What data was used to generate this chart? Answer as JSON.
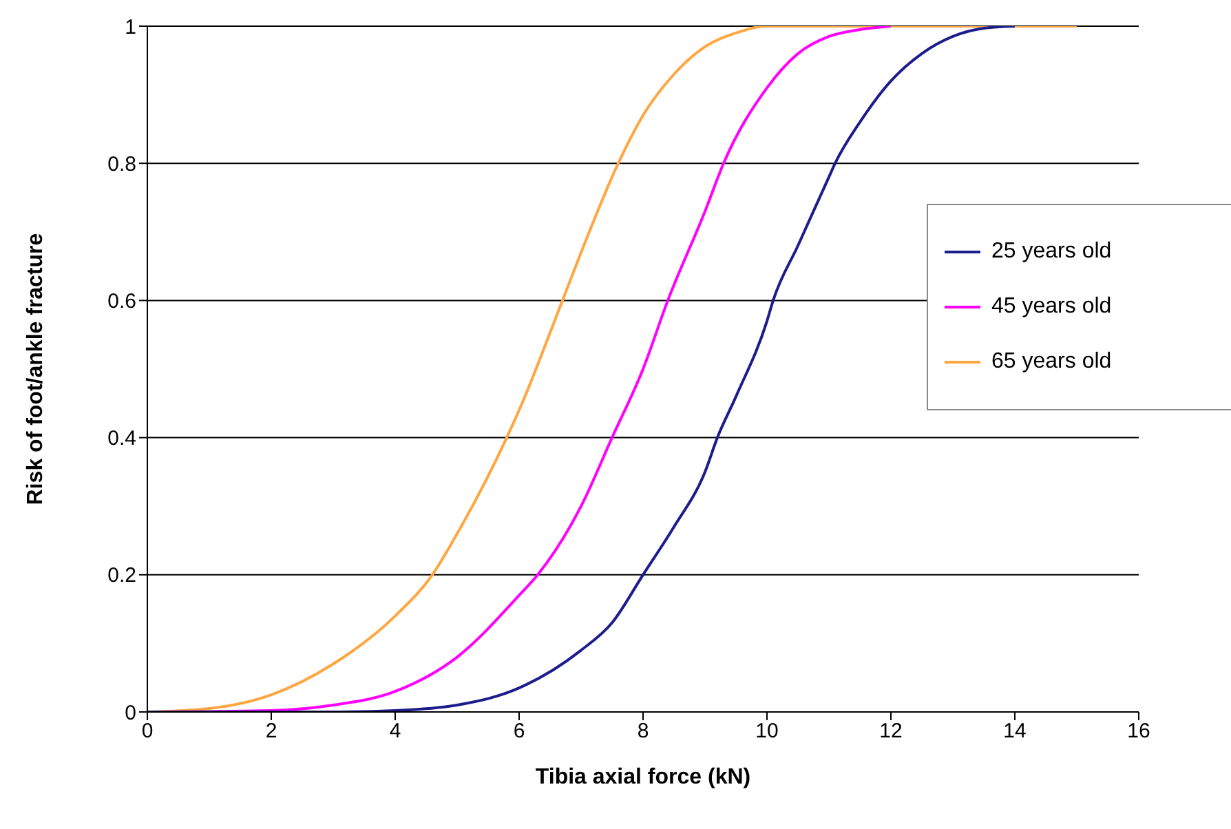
{
  "chart_data": {
    "type": "line",
    "xlabel": "Tibia axial force (kN)",
    "ylabel": "Risk of foot/ankle fracture",
    "xlim": [
      0,
      16
    ],
    "xticks": [
      0,
      2,
      4,
      6,
      8,
      10,
      12,
      14,
      16
    ],
    "ylim": [
      0,
      1
    ],
    "yticks": [
      0,
      0.2,
      0.4,
      0.6,
      0.8,
      1
    ],
    "grid": "y",
    "legend": "right",
    "marker": "none",
    "line_style": "solid",
    "series": [
      {
        "name": "25 years old",
        "color": "#1c1c8c",
        "x": [
          0,
          3,
          4,
          5,
          6,
          7,
          7.5,
          8,
          8.5,
          9,
          9.2,
          9.5,
          10,
          10.1,
          10.5,
          11,
          11.1,
          11.5,
          12,
          12.5,
          13,
          13.5,
          14
        ],
        "values": [
          0,
          0,
          0.002,
          0.01,
          0.035,
          0.09,
          0.13,
          0.2,
          0.27,
          0.35,
          0.4,
          0.46,
          0.57,
          0.6,
          0.68,
          0.78,
          0.8,
          0.86,
          0.92,
          0.96,
          0.985,
          0.997,
          1
        ]
      },
      {
        "name": "45 years old",
        "color": "#ff00ff",
        "x": [
          0,
          2,
          3,
          4,
          5,
          6,
          6.3,
          7,
          7.5,
          8,
          8.4,
          9,
          9.3,
          10,
          10.5,
          11,
          11.5,
          12
        ],
        "values": [
          0,
          0.002,
          0.01,
          0.03,
          0.08,
          0.17,
          0.2,
          0.3,
          0.4,
          0.5,
          0.6,
          0.73,
          0.8,
          0.91,
          0.96,
          0.985,
          0.995,
          1
        ]
      },
      {
        "name": "65 years old",
        "color": "#ffa640",
        "x": [
          0,
          1,
          2,
          3,
          4,
          4.6,
          5,
          5.8,
          6,
          6.7,
          7,
          7.6,
          8,
          8.5,
          9,
          9.5,
          10,
          15
        ],
        "values": [
          0,
          0.005,
          0.025,
          0.07,
          0.14,
          0.2,
          0.26,
          0.4,
          0.44,
          0.6,
          0.67,
          0.8,
          0.87,
          0.93,
          0.97,
          0.99,
          1,
          1
        ]
      }
    ]
  }
}
